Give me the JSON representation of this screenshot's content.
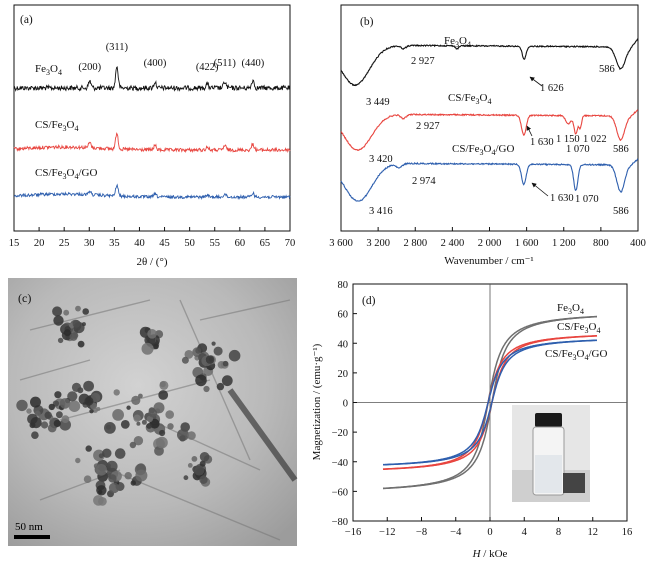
{
  "colors": {
    "fe3o4_xrd": "#111111",
    "cs_fe3o4": "#e8453f",
    "cs_fe3o4_go": "#2e5fae",
    "fe3o4_mag": "#707070"
  },
  "panels": {
    "a": {
      "label": "(a)",
      "series": [
        "Fe3O4",
        "CS/Fe3O4",
        "CS/Fe3O4/GO"
      ],
      "peaks": [
        "(200)",
        "(311)",
        "(400)",
        "(422)",
        "(511)",
        "(440)"
      ]
    },
    "b": {
      "label": "(b)",
      "series": [
        "Fe3O4",
        "CS/Fe3O4",
        "CS/Fe3O4/GO"
      ],
      "annotations": {
        "fe3o4": [
          "2 927",
          "3 449",
          "1 626",
          "586"
        ],
        "cs": [
          "2 927",
          "3 420",
          "1 630",
          "1 150",
          "1 070",
          "1 022",
          "586"
        ],
        "go": [
          "2 974",
          "3 416",
          "1 630",
          "1 070",
          "586"
        ]
      }
    },
    "c": {
      "label": "(c)",
      "scale_bar": "50 nm"
    },
    "d": {
      "label": "(d)",
      "series": [
        "Fe3O4",
        "CS/Fe3O4",
        "CS/Fe3O4/GO"
      ]
    }
  },
  "chart_data": [
    {
      "type": "line",
      "title": "(a)",
      "xlabel": "2θ / (°)",
      "ylabel": "",
      "xlim": [
        15,
        70
      ],
      "xticks": [
        "15",
        "20",
        "25",
        "30",
        "35",
        "40",
        "45",
        "50",
        "55",
        "60",
        "65",
        "70"
      ],
      "peaks": [
        {
          "x": 30.1,
          "label": "(200)"
        },
        {
          "x": 35.5,
          "label": "(311)"
        },
        {
          "x": 43.1,
          "label": "(400)"
        },
        {
          "x": 53.5,
          "label": "(422)"
        },
        {
          "x": 57.0,
          "label": "(511)"
        },
        {
          "x": 62.6,
          "label": "(440)"
        }
      ],
      "series": [
        {
          "name": "Fe3O4",
          "color": "#111111"
        },
        {
          "name": "CS/Fe3O4",
          "color": "#e8453f"
        },
        {
          "name": "CS/Fe3O4/GO",
          "color": "#2e5fae"
        }
      ]
    },
    {
      "type": "line",
      "title": "(b)",
      "xlabel": "Wavenumber / cm⁻¹",
      "ylabel": "",
      "xlim": [
        3600,
        400
      ],
      "xticks": [
        "3 600",
        "3 200",
        "2 800",
        "2 400",
        "2 000",
        "1 600",
        "1 200",
        "800",
        "400"
      ],
      "series": [
        {
          "name": "Fe3O4",
          "color": "#111111"
        },
        {
          "name": "CS/Fe3O4",
          "color": "#e8453f"
        },
        {
          "name": "CS/Fe3O4/GO",
          "color": "#2e5fae"
        }
      ]
    },
    {
      "type": "line",
      "title": "(d)",
      "xlabel": "H / kOe",
      "ylabel": "Magnetization / (emu·g⁻¹)",
      "xlim": [
        -16,
        16
      ],
      "ylim": [
        -80,
        80
      ],
      "xticks": [
        "−16",
        "−12",
        "−8",
        "−4",
        "0",
        "4",
        "8",
        "12",
        "16"
      ],
      "yticks": [
        "80",
        "60",
        "40",
        "20",
        "0",
        "−20",
        "−40",
        "−60",
        "−80"
      ],
      "series": [
        {
          "name": "Fe3O4",
          "color": "#707070",
          "Ms": 58,
          "x": [
            -12.5,
            -8,
            -4,
            -2,
            -1,
            -0.5,
            0,
            0.5,
            1,
            2,
            4,
            8,
            12.5
          ],
          "y": [
            -58,
            -55,
            -49,
            -42,
            -31,
            -20,
            0,
            20,
            31,
            42,
            49,
            55,
            58
          ]
        },
        {
          "name": "CS/Fe3O4",
          "color": "#e8453f",
          "Ms": 45,
          "x": [
            -12.5,
            -8,
            -4,
            -2,
            -1,
            -0.5,
            0,
            0.5,
            1,
            2,
            4,
            8,
            12.5
          ],
          "y": [
            -45,
            -43,
            -38,
            -33,
            -25,
            -16,
            0,
            16,
            25,
            33,
            38,
            43,
            45
          ]
        },
        {
          "name": "CS/Fe3O4/GO",
          "color": "#2e5fae",
          "Ms": 42,
          "x": [
            -12.5,
            -8,
            -4,
            -2,
            -1,
            -0.5,
            0,
            0.5,
            1,
            2,
            4,
            8,
            12.5
          ],
          "y": [
            -42,
            -40,
            -36,
            -31,
            -23,
            -15,
            0,
            15,
            23,
            31,
            36,
            40,
            42
          ]
        }
      ]
    }
  ]
}
